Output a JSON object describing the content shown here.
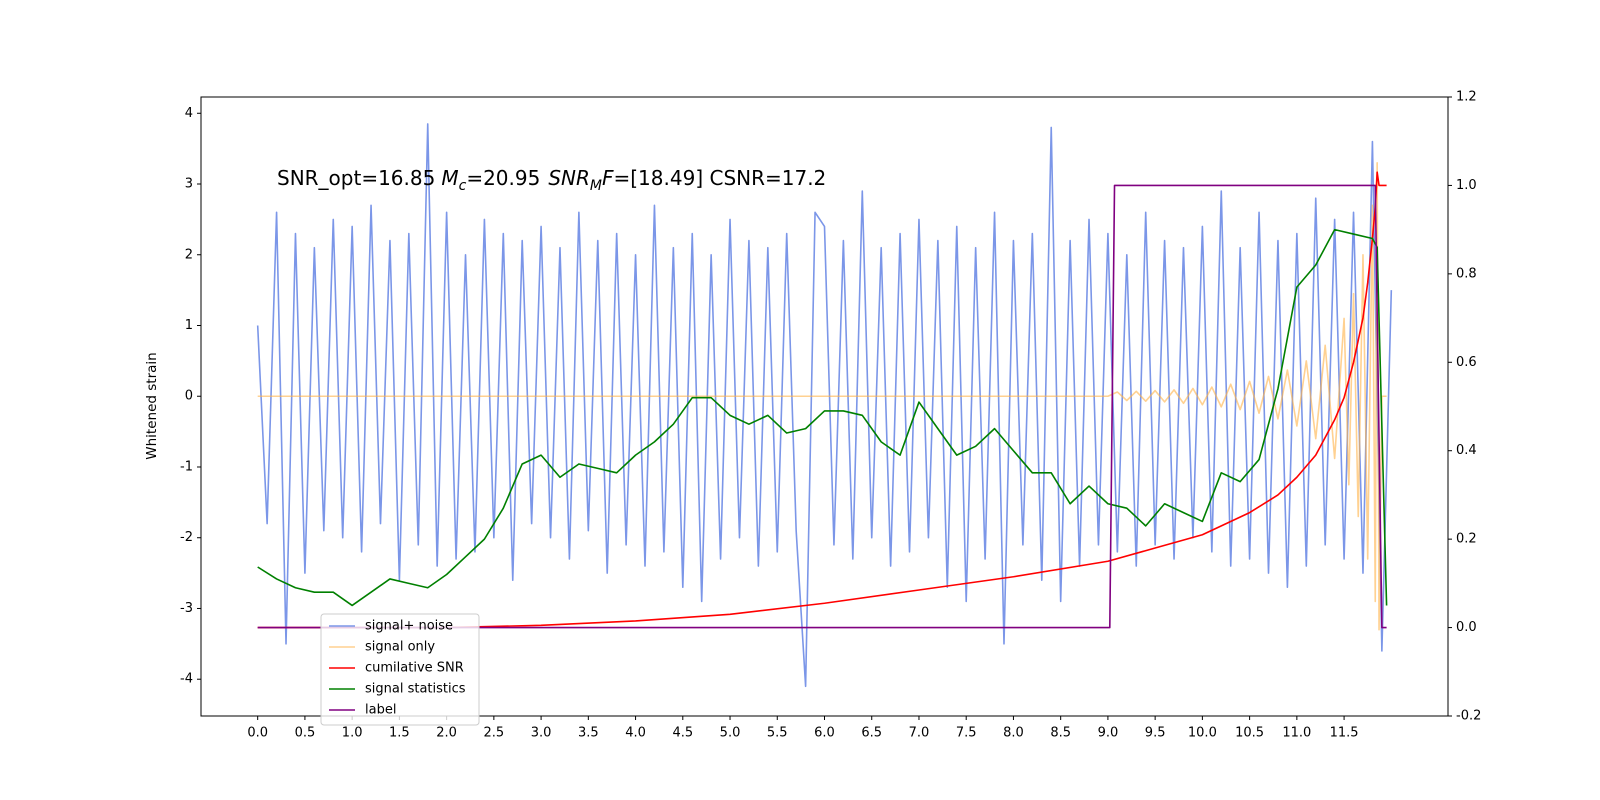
{
  "chart_data": {
    "type": "line",
    "annotation": [
      "SNR_opt=16.85",
      "M",
      "c",
      "=20.95",
      "SNR",
      "M",
      "F",
      "=[18.49] CSNR=17.2"
    ],
    "ylabel": "Whitened strain",
    "xlim": [
      -0.6,
      12.6
    ],
    "ylim": [
      -4.52,
      4.23
    ],
    "y2lim": [
      -0.2,
      1.2
    ],
    "xticks": [
      {
        "value": 0,
        "label": "0.0"
      },
      0.5,
      {
        "value": 1,
        "label": "1.0"
      },
      1.5,
      {
        "value": 2,
        "label": "2.0"
      },
      2.5,
      {
        "value": 3,
        "label": "3.0"
      },
      3.5,
      {
        "value": 4,
        "label": "4.0"
      },
      4.5,
      {
        "value": 5,
        "label": "5.0"
      },
      5.5,
      {
        "value": 6,
        "label": "6.0"
      },
      6.5,
      {
        "value": 7,
        "label": "7.0"
      },
      7.5,
      {
        "value": 8,
        "label": "8.0"
      },
      8.5,
      {
        "value": 9,
        "label": "9.0"
      },
      9.5,
      {
        "value": 10,
        "label": "10.0"
      },
      10.5,
      {
        "value": 11,
        "label": "11.0"
      },
      11.5
    ],
    "yticks": [
      -4,
      -3,
      -2,
      -1,
      0,
      1,
      2,
      3,
      4
    ],
    "y2ticks": [
      -0.2,
      {
        "value": 0,
        "label": "0.0"
      },
      0.2,
      0.4,
      0.6,
      0.8,
      {
        "value": 1,
        "label": "1.0"
      },
      1.2
    ],
    "grid": false,
    "legend": "lower left",
    "series": [
      {
        "name": "signal+ noise",
        "color": "#7b96e8",
        "x": [
          0,
          0.1,
          0.2,
          0.3,
          0.4,
          0.5,
          0.6,
          0.7,
          0.8,
          0.9,
          1,
          1.1,
          1.2,
          1.3,
          1.4,
          1.5,
          1.6,
          1.7,
          1.8,
          1.9,
          2,
          2.1,
          2.2,
          2.3,
          2.4,
          2.5,
          2.6,
          2.7,
          2.8,
          2.9,
          3,
          3.1,
          3.2,
          3.3,
          3.4,
          3.5,
          3.6,
          3.7,
          3.8,
          3.9,
          4,
          4.1,
          4.2,
          4.3,
          4.4,
          4.5,
          4.6,
          4.7,
          4.8,
          4.9,
          5,
          5.1,
          5.2,
          5.3,
          5.4,
          5.5,
          5.6,
          5.7,
          5.8,
          5.9,
          6,
          6.1,
          6.2,
          6.3,
          6.4,
          6.5,
          6.6,
          6.7,
          6.8,
          6.9,
          7,
          7.1,
          7.2,
          7.3,
          7.4,
          7.5,
          7.6,
          7.7,
          7.8,
          7.9,
          8,
          8.1,
          8.2,
          8.3,
          8.4,
          8.5,
          8.6,
          8.7,
          8.8,
          8.9,
          9,
          9.1,
          9.2,
          9.3,
          9.4,
          9.5,
          9.6,
          9.7,
          9.8,
          9.9,
          10,
          10.1,
          10.2,
          10.3,
          10.4,
          10.5,
          10.6,
          10.7,
          10.8,
          10.9,
          11,
          11.1,
          11.2,
          11.3,
          11.4,
          11.5,
          11.6,
          11.7,
          11.8,
          11.9,
          12
        ],
        "values": [
          1.0,
          -1.8,
          2.6,
          -3.5,
          2.3,
          -2.5,
          2.1,
          -1.9,
          2.5,
          -2.0,
          2.4,
          -2.2,
          2.7,
          -1.8,
          2.2,
          -2.6,
          2.3,
          -2.1,
          3.85,
          -2.4,
          2.6,
          -2.3,
          2.0,
          -2.2,
          2.5,
          -2.0,
          2.3,
          -2.6,
          2.2,
          -1.8,
          2.4,
          -2.0,
          2.1,
          -2.3,
          2.6,
          -1.9,
          2.2,
          -2.5,
          2.3,
          -2.1,
          2.0,
          -2.4,
          2.7,
          -2.2,
          2.1,
          -2.7,
          2.3,
          -2.9,
          2.0,
          -2.3,
          2.5,
          -2.0,
          2.2,
          -2.4,
          2.1,
          -2.2,
          2.3,
          -1.9,
          -4.1,
          2.6,
          2.4,
          -2.1,
          2.2,
          -2.3,
          2.9,
          -2.0,
          2.1,
          -2.4,
          2.3,
          -2.2,
          2.5,
          -2.0,
          2.2,
          -2.7,
          2.4,
          -2.9,
          2.1,
          -2.3,
          2.6,
          -3.5,
          2.2,
          -2.1,
          2.3,
          -2.6,
          3.8,
          -2.9,
          2.2,
          -2.4,
          2.5,
          -2.1,
          2.3,
          -2.2,
          2.0,
          -2.4,
          2.6,
          -2.1,
          2.2,
          -2.3,
          2.1,
          -2.0,
          2.4,
          -2.2,
          2.9,
          -2.4,
          2.1,
          -2.3,
          2.6,
          -2.5,
          2.2,
          -2.7,
          2.3,
          -2.4,
          2.8,
          -2.1,
          2.5,
          -2.3,
          2.6,
          -2.5,
          3.6,
          -3.6,
          1.5
        ]
      },
      {
        "name": "signal only",
        "color": "#ffb347",
        "x": [
          0,
          9,
          9.1,
          9.2,
          9.3,
          9.4,
          9.5,
          9.6,
          9.7,
          9.8,
          9.9,
          10,
          10.1,
          10.2,
          10.3,
          10.4,
          10.5,
          10.6,
          10.7,
          10.8,
          10.9,
          11,
          11.1,
          11.2,
          11.3,
          11.4,
          11.5,
          11.55,
          11.6,
          11.65,
          11.7,
          11.75,
          11.8,
          11.83,
          11.85,
          11.87,
          11.9,
          11.95
        ],
        "values": [
          0,
          0,
          0.06,
          -0.06,
          0.07,
          -0.07,
          0.08,
          -0.08,
          0.09,
          -0.1,
          0.11,
          -0.12,
          0.13,
          -0.15,
          0.17,
          -0.19,
          0.21,
          -0.24,
          0.28,
          -0.32,
          0.37,
          -0.42,
          0.5,
          -0.6,
          0.72,
          -0.88,
          1.1,
          -1.25,
          1.45,
          -1.7,
          2.0,
          -2.3,
          2.7,
          -2.9,
          3.3,
          -3.3,
          0,
          0
        ]
      },
      {
        "name": "cumilative SNR",
        "color": "#ff0000",
        "axis": "y2",
        "x": [
          0,
          2,
          3,
          4,
          5,
          6,
          7,
          8,
          9,
          9.5,
          10,
          10.5,
          10.8,
          11,
          11.2,
          11.4,
          11.5,
          11.6,
          11.7,
          11.75,
          11.8,
          11.83,
          11.85,
          11.87,
          11.95
        ],
        "values": [
          0,
          0,
          0.005,
          0.015,
          0.03,
          0.055,
          0.085,
          0.115,
          0.15,
          0.18,
          0.21,
          0.26,
          0.3,
          0.34,
          0.39,
          0.47,
          0.52,
          0.6,
          0.7,
          0.78,
          0.88,
          0.95,
          1.03,
          1.0,
          1.0
        ]
      },
      {
        "name": "signal statistics",
        "color": "#008000",
        "axis": "y2",
        "x": [
          0,
          0.2,
          0.4,
          0.6,
          0.8,
          1,
          1.2,
          1.4,
          1.6,
          1.8,
          2,
          2.2,
          2.4,
          2.6,
          2.8,
          3,
          3.2,
          3.4,
          3.6,
          3.8,
          4,
          4.2,
          4.4,
          4.6,
          4.8,
          5,
          5.2,
          5.4,
          5.6,
          5.8,
          6,
          6.2,
          6.4,
          6.6,
          6.8,
          7,
          7.2,
          7.4,
          7.6,
          7.8,
          8,
          8.2,
          8.4,
          8.6,
          8.8,
          9,
          9.2,
          9.4,
          9.6,
          9.8,
          10,
          10.2,
          10.4,
          10.6,
          10.8,
          11,
          11.2,
          11.4,
          11.6,
          11.8,
          11.85,
          11.95
        ],
        "values": [
          0.137,
          0.11,
          0.09,
          0.08,
          0.08,
          0.05,
          0.08,
          0.11,
          0.1,
          0.09,
          0.12,
          0.16,
          0.2,
          0.27,
          0.37,
          0.39,
          0.34,
          0.37,
          0.36,
          0.35,
          0.39,
          0.42,
          0.46,
          0.52,
          0.52,
          0.48,
          0.46,
          0.48,
          0.44,
          0.45,
          0.49,
          0.49,
          0.48,
          0.42,
          0.39,
          0.51,
          0.45,
          0.39,
          0.41,
          0.45,
          0.4,
          0.35,
          0.35,
          0.28,
          0.32,
          0.28,
          0.27,
          0.23,
          0.28,
          0.26,
          0.24,
          0.35,
          0.33,
          0.38,
          0.54,
          0.77,
          0.82,
          0.9,
          0.89,
          0.88,
          0.86,
          0.05
        ]
      },
      {
        "name": "label",
        "color": "#800080",
        "axis": "y2",
        "x": [
          0,
          9.02,
          9.07,
          11.83,
          11.9,
          11.95
        ],
        "values": [
          0,
          0,
          1,
          1,
          0,
          0
        ]
      }
    ]
  }
}
